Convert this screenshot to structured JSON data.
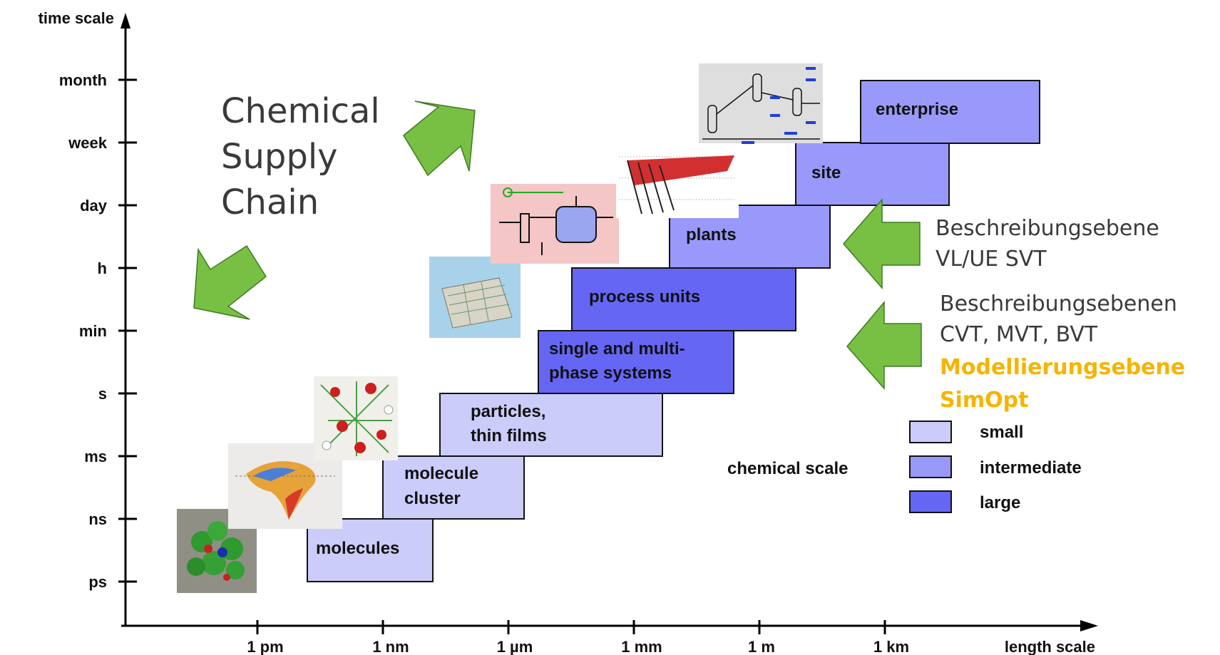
{
  "axes": {
    "y_title": "time scale",
    "x_title": "length scale",
    "y_ticks": [
      "month",
      "week",
      "day",
      "h",
      "min",
      "s",
      "ms",
      "ns",
      "ps"
    ],
    "x_ticks": [
      "1 pm",
      "1 nm",
      "1 µm",
      "1 mm",
      "1 m",
      "1 km"
    ]
  },
  "boxes": [
    {
      "key": "molecules",
      "lines": [
        "molecules"
      ],
      "size": "small"
    },
    {
      "key": "molecule-cluster",
      "lines": [
        "molecule",
        "cluster"
      ],
      "size": "small"
    },
    {
      "key": "particles-thin-films",
      "lines": [
        "particles,",
        "thin films"
      ],
      "size": "small"
    },
    {
      "key": "single-multiphase-systems",
      "lines": [
        "single and multi-",
        "phase systems"
      ],
      "size": "large"
    },
    {
      "key": "process-units",
      "lines": [
        "process units"
      ],
      "size": "large"
    },
    {
      "key": "plants",
      "lines": [
        "plants"
      ],
      "size": "intermediate"
    },
    {
      "key": "site",
      "lines": [
        "site"
      ],
      "size": "intermediate"
    },
    {
      "key": "enterprise",
      "lines": [
        "enterprise"
      ],
      "size": "intermediate"
    }
  ],
  "supply_chain_label": [
    "Chemical",
    "Supply",
    "Chain"
  ],
  "annotations": {
    "level_svt": [
      "Beschreibungsebene",
      "VL/UE SVT"
    ],
    "levels_cvt": [
      "Beschreibungsebenen",
      "CVT, MVT, BVT"
    ],
    "modelling": [
      "Modellierungsebene",
      "SimOpt"
    ]
  },
  "legend": {
    "title": "chemical scale",
    "items": [
      {
        "label": "small",
        "color": "#ccccfb"
      },
      {
        "label": "intermediate",
        "color": "#9999fb"
      },
      {
        "label": "large",
        "color": "#6666f5"
      }
    ]
  },
  "colors": {
    "small": "#ccccfb",
    "intermediate": "#9999fb",
    "large": "#6666f5",
    "arrow_green": "#77c043",
    "accent_orange": "#f5b400"
  },
  "illustrations": [
    "molecule-model-image",
    "potential-surface-image",
    "molecular-structure-image",
    "particle-packing-image",
    "process-flow-image",
    "reactor-model-image",
    "plant-flowsheet-image"
  ]
}
